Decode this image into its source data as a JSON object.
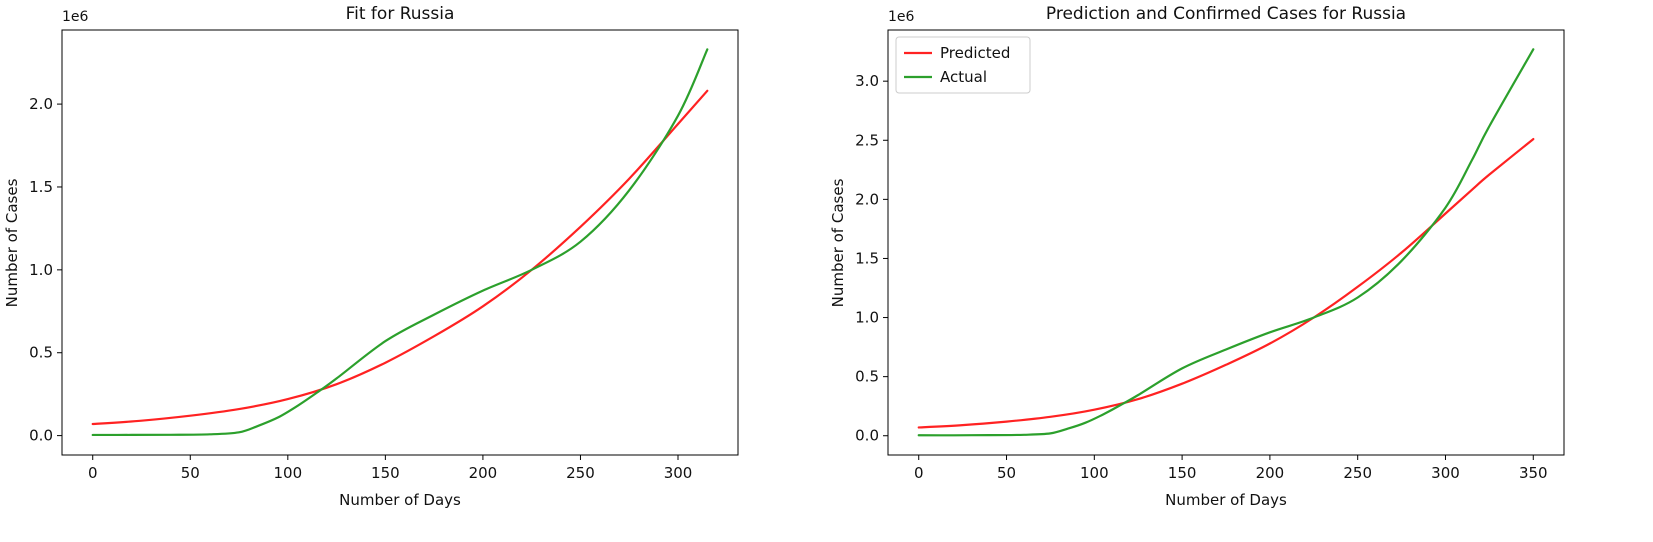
{
  "figure": {
    "background": "#ffffff"
  },
  "colors": {
    "predicted": "#ff2222",
    "actual": "#2ca02c",
    "frame": "#000000",
    "legend_border": "#cccccc"
  },
  "chart_data": [
    {
      "type": "line",
      "title": "Fit for Russia",
      "xlabel": "Number of Days",
      "ylabel": "Number of Cases",
      "offset_text": "1e6",
      "y_unit": "1e6",
      "xlim": [
        -15.75,
        330.75
      ],
      "ylim": [
        -0.117,
        2.447
      ],
      "xticks": [
        0,
        50,
        100,
        150,
        200,
        250,
        300
      ],
      "yticks": [
        0.0,
        0.5,
        1.0,
        1.5,
        2.0
      ],
      "ytick_labels": [
        "0.0",
        "0.5",
        "1.0",
        "1.5",
        "2.0"
      ],
      "grid": false,
      "legend": null,
      "series": [
        {
          "name": "Predicted",
          "color": "#ff2222",
          "x": [
            0,
            25,
            50,
            75,
            100,
            125,
            150,
            175,
            200,
            225,
            250,
            275,
            300,
            315
          ],
          "y": [
            0.07,
            0.09,
            0.12,
            0.16,
            0.22,
            0.31,
            0.44,
            0.6,
            0.78,
            1.0,
            1.26,
            1.55,
            1.88,
            2.08
          ]
        },
        {
          "name": "Actual",
          "color": "#2ca02c",
          "x": [
            0,
            20,
            40,
            60,
            75,
            85,
            95,
            105,
            115,
            125,
            150,
            175,
            200,
            225,
            250,
            275,
            300,
            315
          ],
          "y": [
            0.004,
            0.004,
            0.005,
            0.008,
            0.02,
            0.06,
            0.11,
            0.18,
            0.26,
            0.345,
            0.57,
            0.73,
            0.875,
            1.0,
            1.17,
            1.48,
            1.93,
            2.33
          ]
        }
      ]
    },
    {
      "type": "line",
      "title": "Prediction and Confirmed Cases for Russia",
      "xlabel": "Number of Days",
      "ylabel": "Number of Cases",
      "offset_text": "1e6",
      "y_unit": "1e6",
      "xlim": [
        -17.5,
        367.5
      ],
      "ylim": [
        -0.163,
        3.433
      ],
      "xticks": [
        0,
        50,
        100,
        150,
        200,
        250,
        300,
        350
      ],
      "yticks": [
        0.0,
        0.5,
        1.0,
        1.5,
        2.0,
        2.5,
        3.0
      ],
      "ytick_labels": [
        "0.0",
        "0.5",
        "1.0",
        "1.5",
        "2.0",
        "2.5",
        "3.0"
      ],
      "grid": false,
      "legend": {
        "position": "upper left",
        "items": [
          "Predicted",
          "Actual"
        ]
      },
      "series": [
        {
          "name": "Predicted",
          "color": "#ff2222",
          "x": [
            0,
            25,
            50,
            75,
            100,
            125,
            150,
            175,
            200,
            225,
            250,
            275,
            300,
            315,
            325,
            350
          ],
          "y": [
            0.07,
            0.09,
            0.12,
            0.16,
            0.22,
            0.31,
            0.44,
            0.6,
            0.78,
            1.0,
            1.26,
            1.55,
            1.88,
            2.08,
            2.21,
            2.51
          ]
        },
        {
          "name": "Actual",
          "color": "#2ca02c",
          "x": [
            0,
            20,
            40,
            60,
            75,
            85,
            95,
            105,
            115,
            125,
            150,
            175,
            200,
            225,
            250,
            275,
            300,
            315,
            325,
            350
          ],
          "y": [
            0.004,
            0.004,
            0.005,
            0.008,
            0.02,
            0.06,
            0.11,
            0.18,
            0.26,
            0.345,
            0.57,
            0.73,
            0.875,
            1.0,
            1.17,
            1.48,
            1.93,
            2.33,
            2.62,
            3.27
          ]
        }
      ]
    }
  ]
}
